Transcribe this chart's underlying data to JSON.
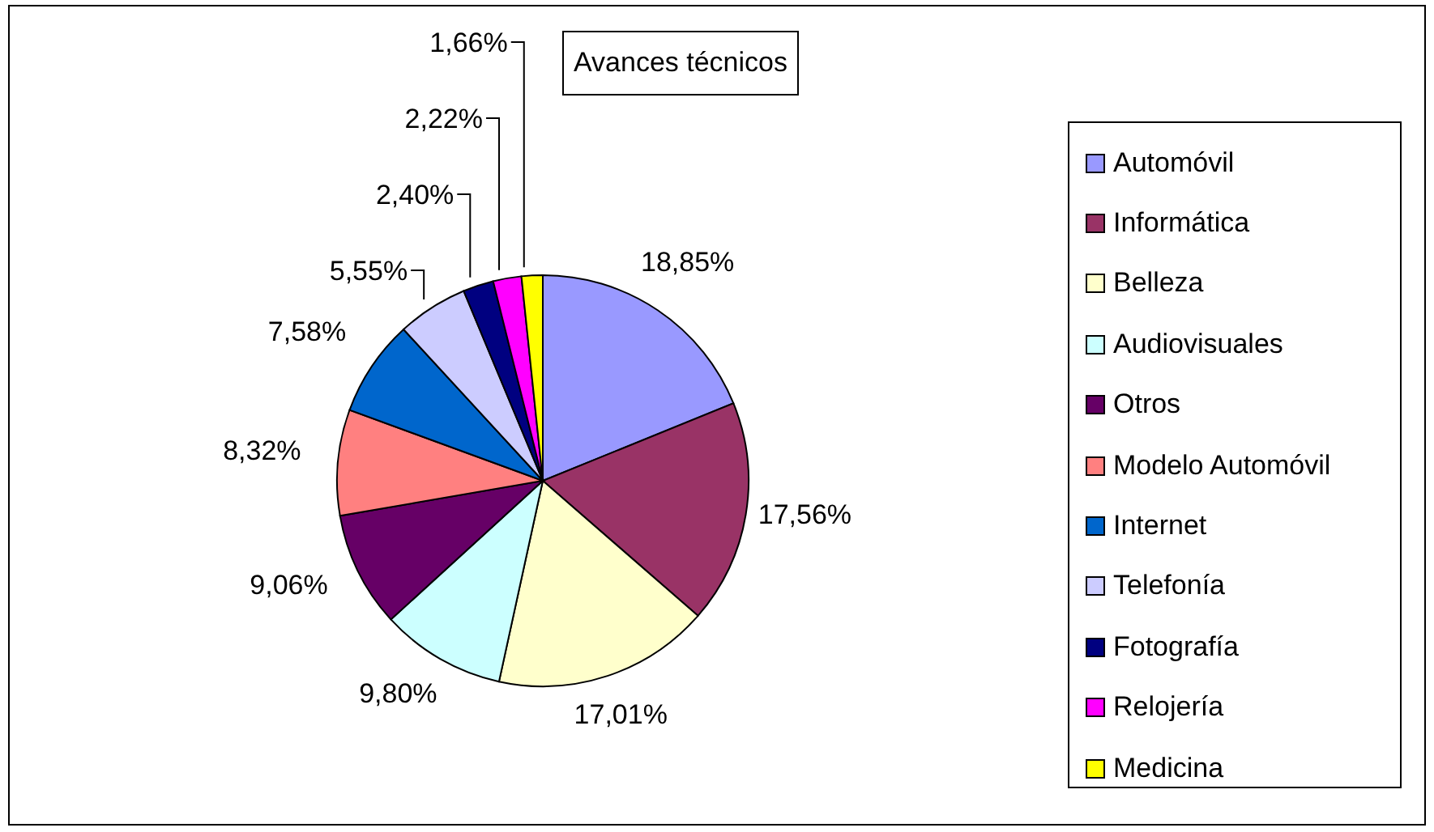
{
  "chart_data": {
    "type": "pie",
    "title": "Avances técnicos",
    "categories": [
      "Automóvil",
      "Informática",
      "Belleza",
      "Audiovisuales",
      "Otros",
      "Modelo Automóvil",
      "Internet",
      "Telefonía",
      "Fotografía",
      "Relojería",
      "Medicina"
    ],
    "values": [
      18.85,
      17.56,
      17.01,
      9.8,
      9.06,
      8.32,
      7.58,
      5.55,
      2.4,
      2.22,
      1.66
    ],
    "value_labels": [
      "18,85%",
      "17,56%",
      "17,01%",
      "9,80%",
      "9,06%",
      "8,32%",
      "7,58%",
      "5,55%",
      "2,40%",
      "2,22%",
      "1,66%"
    ],
    "colors": [
      "#9999ff",
      "#993366",
      "#ffffcc",
      "#ccffff",
      "#660066",
      "#ff8080",
      "#0066cc",
      "#ccccff",
      "#000080",
      "#ff00ff",
      "#ffff00"
    ],
    "legend": "right"
  }
}
